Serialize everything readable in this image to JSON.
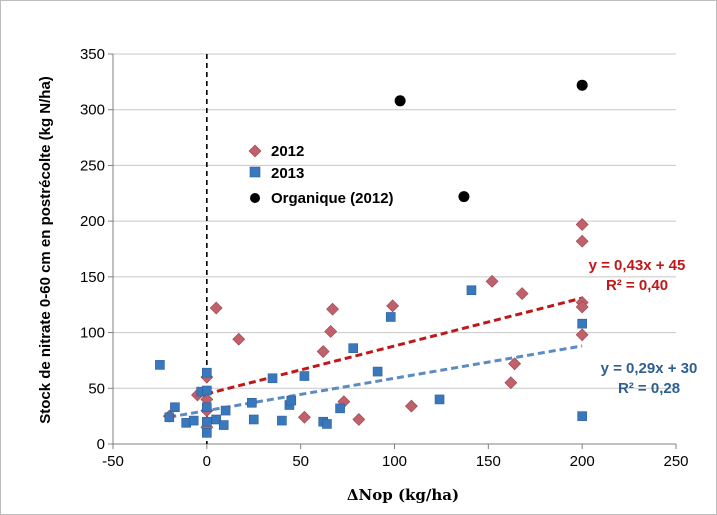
{
  "chart_data": {
    "type": "scatter",
    "ylabel": "Stock de nitrate 0-60 cm en postrécolte (kg N/ha)",
    "xlabel": "ΔNop (kg/ha)",
    "xlim": [
      -50,
      250
    ],
    "ylim": [
      0,
      350
    ],
    "x_ticks": [
      "-50",
      "0",
      "50",
      "100",
      "150",
      "200",
      "250"
    ],
    "y_ticks": [
      "0",
      "50",
      "100",
      "150",
      "200",
      "250",
      "300",
      "350"
    ],
    "grid": "horizontal",
    "legend_position": "upper-left",
    "reference_line_x": 0,
    "series": [
      {
        "name": "2012",
        "marker": "diamond",
        "color": "#c0606a",
        "points": [
          [
            -20,
            25
          ],
          [
            -5,
            44
          ],
          [
            0,
            60
          ],
          [
            0,
            40
          ],
          [
            0,
            30
          ],
          [
            0,
            15
          ],
          [
            5,
            122
          ],
          [
            17,
            94
          ],
          [
            52,
            24
          ],
          [
            62,
            83
          ],
          [
            66,
            101
          ],
          [
            67,
            121
          ],
          [
            73,
            38
          ],
          [
            81,
            22
          ],
          [
            99,
            124
          ],
          [
            109,
            34
          ],
          [
            152,
            146
          ],
          [
            162,
            55
          ],
          [
            164,
            72
          ],
          [
            168,
            135
          ],
          [
            200,
            197
          ],
          [
            200,
            182
          ],
          [
            200,
            127
          ],
          [
            200,
            123
          ],
          [
            200,
            98
          ]
        ]
      },
      {
        "name": "2013",
        "marker": "square",
        "color": "#3a78bd",
        "points": [
          [
            -25,
            71
          ],
          [
            -20,
            24
          ],
          [
            -17,
            33
          ],
          [
            -11,
            19
          ],
          [
            -7,
            21
          ],
          [
            -3,
            47
          ],
          [
            0,
            64
          ],
          [
            0,
            48
          ],
          [
            0,
            33
          ],
          [
            0,
            20
          ],
          [
            0,
            10
          ],
          [
            5,
            22
          ],
          [
            9,
            17
          ],
          [
            10,
            30
          ],
          [
            24,
            37
          ],
          [
            25,
            22
          ],
          [
            35,
            59
          ],
          [
            40,
            21
          ],
          [
            44,
            35
          ],
          [
            45,
            39
          ],
          [
            52,
            61
          ],
          [
            62,
            20
          ],
          [
            64,
            18
          ],
          [
            71,
            32
          ],
          [
            78,
            86
          ],
          [
            91,
            65
          ],
          [
            98,
            114
          ],
          [
            124,
            40
          ],
          [
            141,
            138
          ],
          [
            200,
            108
          ],
          [
            200,
            25
          ]
        ]
      },
      {
        "name": "Organique (2012)",
        "marker": "circle",
        "color": "#000000",
        "points": [
          [
            103,
            308
          ],
          [
            137,
            222
          ],
          [
            200,
            322
          ]
        ]
      }
    ],
    "trendlines": [
      {
        "label": "y = 0,43x + 45",
        "r2": "R² = 0,40",
        "slope": 0.43,
        "intercept": 45,
        "x_range": [
          -6,
          200
        ],
        "color": "#c01818"
      },
      {
        "label": "y = 0,29x + 30",
        "r2": "R² = 0,28",
        "slope": 0.29,
        "intercept": 30,
        "x_range": [
          -20,
          200
        ],
        "color": "#5b8bc3"
      }
    ]
  }
}
